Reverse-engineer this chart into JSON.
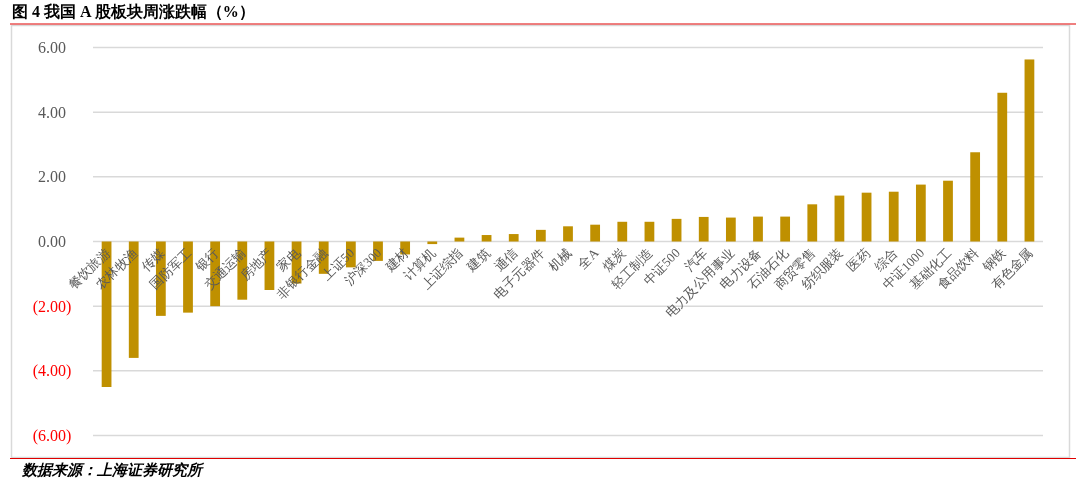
{
  "chart_data": {
    "type": "bar",
    "title": "图 4 我国 A 股板块周涨跌幅（%）",
    "categories": [
      "餐饮旅游",
      "农林牧渔",
      "传媒",
      "国防军工",
      "银行",
      "交通运输",
      "房地产",
      "家电",
      "非银行金融",
      "上证50",
      "沪深300",
      "建材",
      "计算机",
      "上证综指",
      "建筑",
      "通信",
      "电子元器件",
      "机械",
      "全A",
      "煤炭",
      "轻工制造",
      "中证500",
      "汽车",
      "电力及公用事业",
      "电力设备",
      "石油石化",
      "商贸零售",
      "纺织服装",
      "医药",
      "综合",
      "中证1000",
      "基础化工",
      "食品饮料",
      "钢铁",
      "有色金属"
    ],
    "values": [
      -4.5,
      -3.6,
      -2.3,
      -2.2,
      -2.0,
      -1.8,
      -1.5,
      -1.3,
      -1.0,
      -0.8,
      -0.6,
      -0.4,
      -0.08,
      0.12,
      0.2,
      0.23,
      0.36,
      0.47,
      0.52,
      0.61,
      0.61,
      0.7,
      0.76,
      0.74,
      0.77,
      0.77,
      1.15,
      1.42,
      1.51,
      1.54,
      1.76,
      1.88,
      2.76,
      4.6,
      5.63
    ],
    "color": "#bf9000",
    "ylim": [
      -6,
      6
    ],
    "yticks": [
      {
        "value": 6,
        "label": "6.00"
      },
      {
        "value": 4,
        "label": "4.00"
      },
      {
        "value": 2,
        "label": "2.00"
      },
      {
        "value": 0,
        "label": "0.00"
      },
      {
        "value": -2,
        "label": "(2.00)"
      },
      {
        "value": -4,
        "label": "(4.00)"
      },
      {
        "value": -6,
        "label": "(6.00)"
      }
    ],
    "grid": "y",
    "annotations": [
      "数据来源：上海证券研究所"
    ]
  }
}
